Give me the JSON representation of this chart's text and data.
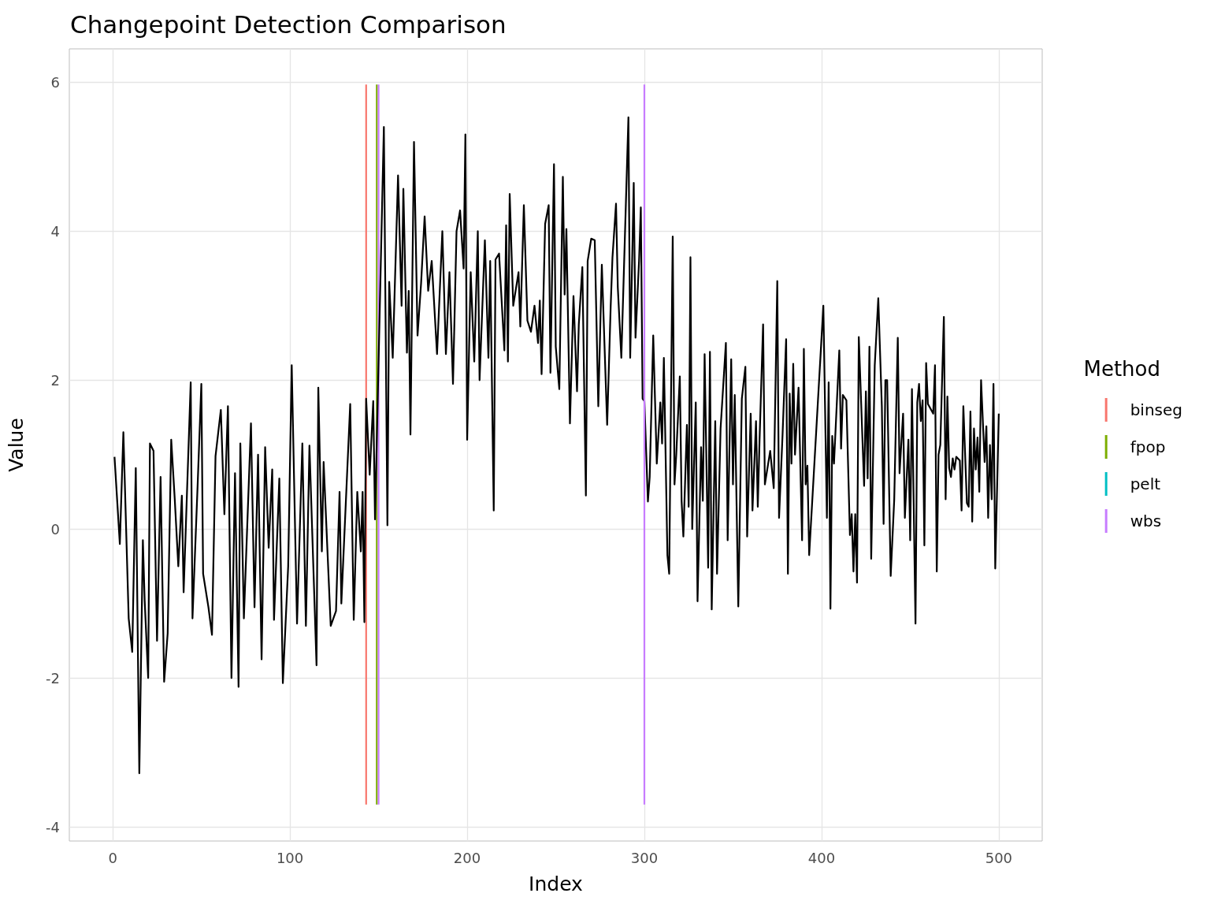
{
  "chart_data": {
    "type": "line",
    "title": "Changepoint Detection Comparison",
    "xlabel": "Index",
    "ylabel": "Value",
    "legend_title": "Method",
    "legend": "right",
    "grid": true,
    "marker": "none",
    "xlim": [
      -24.5,
      524.5
    ],
    "xticks": [
      0,
      100,
      200,
      300,
      400,
      500
    ],
    "ylim": [
      -4.19,
      6.45
    ],
    "yticks": [
      -4,
      -2,
      0,
      2,
      4,
      6
    ],
    "series": [
      {
        "color": "#000000",
        "x": [
          1,
          4,
          6,
          9,
          11,
          13,
          15,
          17,
          18,
          20,
          21,
          23,
          25,
          27,
          29,
          31,
          33,
          35,
          37,
          39,
          40,
          44,
          45,
          48,
          50,
          51,
          54,
          56,
          58,
          61,
          63,
          65,
          67,
          69,
          71,
          72,
          74,
          78,
          80,
          82,
          84,
          86,
          88,
          90,
          91,
          94,
          96,
          99,
          101,
          104,
          107,
          109,
          111,
          115,
          116,
          118,
          119,
          123,
          126,
          128,
          129,
          134,
          136,
          138,
          140,
          141,
          142,
          143,
          145,
          147,
          148,
          153,
          155,
          156,
          158,
          161,
          163,
          164,
          166,
          167,
          168,
          170,
          172,
          174,
          176,
          178,
          180,
          183,
          186,
          188,
          190,
          192,
          194,
          196,
          198,
          199,
          200,
          202,
          204,
          206,
          207,
          210,
          212,
          213,
          215,
          216,
          218,
          221,
          222,
          223,
          224,
          226,
          229,
          230,
          232,
          234,
          236,
          238,
          240,
          241,
          242,
          244,
          246,
          247,
          249,
          250,
          252,
          254,
          255,
          256,
          258,
          260,
          262,
          263,
          265,
          267,
          268,
          270,
          272,
          274,
          276,
          279,
          281,
          282,
          284,
          285,
          287,
          291,
          292,
          294,
          295,
          297,
          298,
          299,
          300,
          302,
          303,
          305,
          307,
          309,
          310,
          311,
          313,
          314,
          316,
          317,
          318,
          320,
          321,
          322,
          324,
          325,
          326,
          327,
          329,
          330,
          332,
          333,
          334,
          336,
          337,
          338,
          340,
          341,
          343,
          346,
          347,
          349,
          350,
          351,
          353,
          355,
          357,
          358,
          360,
          361,
          363,
          364,
          365,
          367,
          368,
          371,
          373,
          375,
          376,
          378,
          380,
          381,
          382,
          383,
          384,
          385,
          387,
          389,
          390,
          391,
          392,
          393,
          401,
          403,
          404,
          405,
          406,
          407,
          410,
          411,
          412,
          414,
          416,
          417,
          418,
          419,
          420,
          421,
          424,
          425,
          426,
          427,
          428,
          430,
          432,
          434,
          435,
          436,
          437,
          439,
          441,
          443,
          444,
          446,
          447,
          449,
          450,
          451,
          453,
          454,
          455,
          456,
          457,
          458,
          459,
          460,
          463,
          464,
          465,
          466,
          467,
          469,
          470,
          471,
          472,
          473,
          474,
          475,
          476,
          478,
          479,
          480,
          482,
          483,
          484,
          485,
          486,
          487,
          488,
          489,
          490,
          492,
          493,
          494,
          495,
          496,
          497,
          498,
          500
        ],
        "values": [
          0.97,
          -0.2,
          1.3,
          -1.2,
          -1.65,
          0.82,
          -3.28,
          -0.15,
          -0.95,
          -2.0,
          1.15,
          1.05,
          -1.5,
          0.7,
          -2.05,
          -1.4,
          1.2,
          0.4,
          -0.5,
          0.45,
          -0.85,
          1.97,
          -1.2,
          0.65,
          1.95,
          -0.6,
          -1.05,
          -1.42,
          0.98,
          1.6,
          0.2,
          1.65,
          -2.0,
          0.75,
          -2.12,
          1.15,
          -1.2,
          1.42,
          -1.05,
          1.0,
          -1.75,
          1.1,
          -0.25,
          0.8,
          -1.22,
          0.68,
          -2.07,
          -0.5,
          2.2,
          -1.27,
          1.15,
          -1.3,
          1.12,
          -1.83,
          1.9,
          -0.3,
          0.9,
          -1.3,
          -1.1,
          0.5,
          -1.0,
          1.68,
          -1.22,
          0.5,
          -0.3,
          0.5,
          -1.25,
          1.75,
          0.73,
          1.72,
          0.13,
          5.4,
          0.05,
          3.32,
          2.3,
          4.75,
          3.0,
          4.57,
          2.37,
          3.2,
          1.27,
          5.2,
          2.6,
          3.3,
          4.2,
          3.2,
          3.6,
          2.35,
          4.0,
          2.35,
          3.45,
          1.95,
          4.0,
          4.28,
          3.5,
          5.3,
          1.2,
          3.45,
          2.25,
          4.0,
          2.0,
          3.88,
          2.3,
          3.6,
          0.25,
          3.62,
          3.7,
          2.4,
          4.08,
          2.25,
          4.5,
          3.0,
          3.45,
          2.72,
          4.35,
          2.8,
          2.65,
          3.0,
          2.5,
          3.07,
          2.08,
          4.1,
          4.35,
          2.1,
          4.9,
          2.45,
          1.88,
          4.73,
          3.15,
          4.03,
          1.42,
          3.13,
          1.85,
          2.75,
          3.52,
          0.45,
          3.6,
          3.9,
          3.88,
          1.65,
          3.55,
          1.4,
          3.0,
          3.65,
          4.37,
          3.25,
          2.3,
          5.53,
          2.3,
          4.65,
          2.57,
          3.6,
          4.32,
          1.75,
          1.72,
          0.37,
          0.7,
          2.6,
          0.88,
          1.7,
          1.15,
          2.3,
          -0.35,
          -0.6,
          3.93,
          0.6,
          1.0,
          2.05,
          0.38,
          -0.1,
          1.4,
          0.3,
          3.65,
          0.0,
          1.7,
          -0.97,
          1.1,
          0.38,
          2.35,
          -0.52,
          2.38,
          -1.08,
          1.45,
          -0.6,
          1.35,
          2.5,
          -0.15,
          2.28,
          0.6,
          1.8,
          -1.04,
          1.75,
          2.18,
          -0.1,
          1.55,
          0.25,
          1.45,
          0.3,
          1.2,
          2.75,
          0.6,
          1.05,
          0.55,
          3.33,
          0.15,
          1.28,
          2.55,
          -0.6,
          1.82,
          0.88,
          2.22,
          1.0,
          1.9,
          -0.15,
          2.42,
          0.6,
          0.85,
          -0.35,
          3.0,
          0.15,
          1.97,
          -1.07,
          1.25,
          0.88,
          2.4,
          1.08,
          1.8,
          1.73,
          -0.08,
          0.2,
          -0.57,
          0.2,
          -0.72,
          2.58,
          0.58,
          1.85,
          0.68,
          2.45,
          -0.4,
          2.2,
          3.1,
          1.65,
          0.07,
          2.0,
          2.0,
          -0.63,
          0.4,
          2.57,
          0.75,
          1.55,
          0.15,
          1.2,
          -0.15,
          1.88,
          -1.27,
          1.7,
          1.95,
          1.45,
          1.73,
          -0.22,
          2.23,
          1.68,
          1.55,
          2.2,
          -0.57,
          1.0,
          1.13,
          2.85,
          0.4,
          1.78,
          0.82,
          0.7,
          0.95,
          0.8,
          0.97,
          0.92,
          0.25,
          1.65,
          0.35,
          0.3,
          1.58,
          0.1,
          1.35,
          0.8,
          1.23,
          0.5,
          2.0,
          0.9,
          1.38,
          0.15,
          1.13,
          0.4,
          1.95,
          -0.53,
          1.55
        ]
      },
      {
        "name": "binseg",
        "color": "#f8766d",
        "x": [
          143,
          143
        ],
        "values": [
          -3.7,
          5.97
        ]
      },
      {
        "name": "fpop",
        "color": "#7cae00",
        "x": [
          149,
          149
        ],
        "values": [
          -3.7,
          5.97
        ]
      },
      {
        "name": "pelt",
        "color": "#00bfc4"
      },
      {
        "name": "wbs",
        "color": "#c77cff",
        "x": [
          150,
          150
        ],
        "values": [
          -3.7,
          5.97
        ]
      },
      {
        "color": "#c77cff",
        "x": [
          300,
          300
        ],
        "values": [
          -3.7,
          5.97
        ]
      }
    ]
  }
}
